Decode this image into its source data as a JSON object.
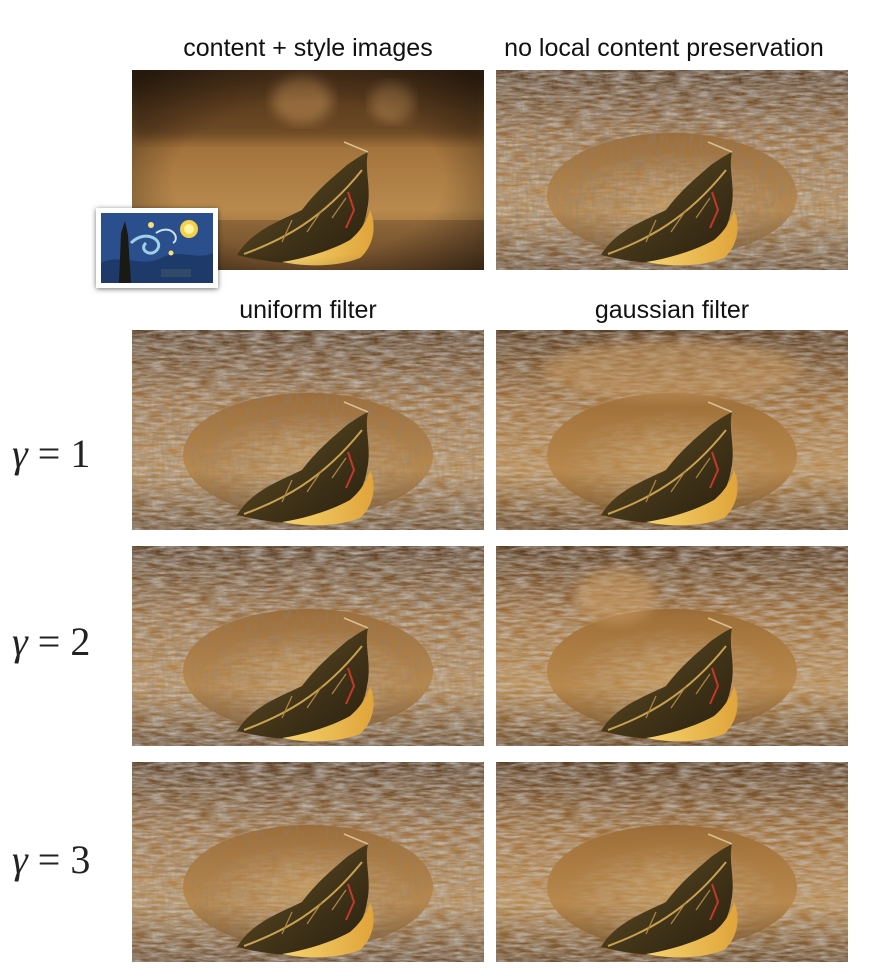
{
  "header": {
    "col1_label": "content + style images",
    "col2_label": "no local content preservation"
  },
  "subheader": {
    "col1_label": "uniform filter",
    "col2_label": "gaussian filter"
  },
  "rows": [
    {
      "label": "γ = 1"
    },
    {
      "label": "γ = 2"
    },
    {
      "label": "γ = 3"
    }
  ],
  "colors": {
    "leaf_dark": "#4a3a1c",
    "leaf_gold": "#f0c24a",
    "background_warm": "#b98a4e",
    "texture_gray": "#8e8a86"
  },
  "images": [
    {
      "name": "content-photo",
      "kind": "photo"
    },
    {
      "name": "style-painting-inset",
      "kind": "painting"
    },
    {
      "name": "stylized-no-preservation",
      "kind": "stylized"
    },
    {
      "name": "stylized-uniform-g1",
      "kind": "stylized"
    },
    {
      "name": "stylized-gaussian-g1",
      "kind": "stylized"
    },
    {
      "name": "stylized-uniform-g2",
      "kind": "stylized"
    },
    {
      "name": "stylized-gaussian-g2",
      "kind": "stylized"
    },
    {
      "name": "stylized-uniform-g3",
      "kind": "stylized"
    },
    {
      "name": "stylized-gaussian-g3",
      "kind": "stylized"
    }
  ]
}
